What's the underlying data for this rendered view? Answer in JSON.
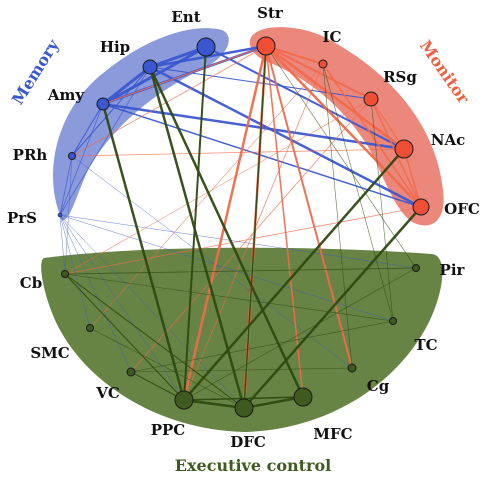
{
  "modules": {
    "memory": {
      "label": "Memory",
      "color": "#3a57d0",
      "fill": "#7d8fd6"
    },
    "monitor": {
      "label": "Monitor",
      "color": "#ef6040",
      "fill": "#ea7a6e"
    },
    "executive": {
      "label": "Executive control",
      "color": "#3e5a1e",
      "fill": "#5a7a34"
    }
  },
  "colors": {
    "memory_edge": "#3a57d0",
    "monitor_edge": "#f06a4a",
    "executive_edge": "#2e4a10"
  },
  "nodes": [
    {
      "id": "Ent",
      "label": "Ent",
      "module": "memory"
    },
    {
      "id": "Hip",
      "label": "Hip",
      "module": "memory"
    },
    {
      "id": "Amy",
      "label": "Amy",
      "module": "memory"
    },
    {
      "id": "PRh",
      "label": "PRh",
      "module": "memory"
    },
    {
      "id": "PrS",
      "label": "PrS",
      "module": "memory"
    },
    {
      "id": "Str",
      "label": "Str",
      "module": "monitor"
    },
    {
      "id": "IC",
      "label": "IC",
      "module": "monitor"
    },
    {
      "id": "RSg",
      "label": "RSg",
      "module": "monitor"
    },
    {
      "id": "NAc",
      "label": "NAc",
      "module": "monitor"
    },
    {
      "id": "OFC",
      "label": "OFC",
      "module": "monitor"
    },
    {
      "id": "Pir",
      "label": "Pir",
      "module": "executive"
    },
    {
      "id": "TC",
      "label": "TC",
      "module": "executive"
    },
    {
      "id": "Cg",
      "label": "Cg",
      "module": "executive"
    },
    {
      "id": "MFC",
      "label": "MFC",
      "module": "executive"
    },
    {
      "id": "DFC",
      "label": "DFC",
      "module": "executive"
    },
    {
      "id": "PPC",
      "label": "PPC",
      "module": "executive"
    },
    {
      "id": "VC",
      "label": "VC",
      "module": "executive"
    },
    {
      "id": "SMC",
      "label": "SMC",
      "module": "executive"
    },
    {
      "id": "Cb",
      "label": "Cb",
      "module": "executive"
    }
  ],
  "edges": [
    {
      "from": "Ent",
      "to": "Hip",
      "type": "memory",
      "weight": 3
    },
    {
      "from": "Ent",
      "to": "Amy",
      "type": "memory",
      "weight": 3
    },
    {
      "from": "Hip",
      "to": "Amy",
      "type": "memory",
      "weight": 3
    },
    {
      "from": "Amy",
      "to": "Str",
      "type": "memory",
      "weight": 2.5
    },
    {
      "from": "Hip",
      "to": "Str",
      "type": "memory",
      "weight": 2.5
    },
    {
      "from": "Amy",
      "to": "NAc",
      "type": "memory",
      "weight": 2.5
    },
    {
      "from": "Hip",
      "to": "OFC",
      "type": "memory",
      "weight": 2.5
    },
    {
      "from": "Ent",
      "to": "NAc",
      "type": "memory",
      "weight": 2
    },
    {
      "from": "Amy",
      "to": "OFC",
      "type": "memory",
      "weight": 1.5
    },
    {
      "from": "Hip",
      "to": "RSg",
      "type": "memory",
      "weight": 1
    },
    {
      "from": "Hip",
      "to": "PRh",
      "type": "memory",
      "weight": 1
    },
    {
      "from": "Amy",
      "to": "PRh",
      "type": "memory",
      "weight": 1
    },
    {
      "from": "PrS",
      "to": "Amy",
      "type": "memory",
      "weight": 0.8
    },
    {
      "from": "PrS",
      "to": "Hip",
      "type": "memory",
      "weight": 0.8
    },
    {
      "from": "PRh",
      "to": "PrS",
      "type": "memory",
      "weight": 0.8
    },
    {
      "from": "PrS",
      "to": "Cb",
      "type": "memory",
      "weight": 0.5
    },
    {
      "from": "PrS",
      "to": "SMC",
      "type": "memory",
      "weight": 0.5
    },
    {
      "from": "PrS",
      "to": "VC",
      "type": "memory",
      "weight": 0.5
    },
    {
      "from": "PrS",
      "to": "PPC",
      "type": "memory",
      "weight": 0.5
    },
    {
      "from": "PrS",
      "to": "DFC",
      "type": "memory",
      "weight": 0.5
    },
    {
      "from": "PrS",
      "to": "Pir",
      "type": "memory",
      "weight": 0.5
    },
    {
      "from": "PrS",
      "to": "TC",
      "type": "memory",
      "weight": 0.5
    },
    {
      "from": "PRh",
      "to": "Cb",
      "type": "memory",
      "weight": 0.5
    },
    {
      "from": "PRh",
      "to": "Cg",
      "type": "memory",
      "weight": 0.5
    },
    {
      "from": "Str",
      "to": "IC",
      "type": "monitor",
      "weight": 2
    },
    {
      "from": "Str",
      "to": "RSg",
      "type": "monitor",
      "weight": 2
    },
    {
      "from": "Str",
      "to": "NAc",
      "type": "monitor",
      "weight": 2.5
    },
    {
      "from": "Str",
      "to": "OFC",
      "type": "monitor",
      "weight": 2.5
    },
    {
      "from": "IC",
      "to": "OFC",
      "type": "monitor",
      "weight": 1.5
    },
    {
      "from": "RSg",
      "to": "OFC",
      "type": "monitor",
      "weight": 1.5
    },
    {
      "from": "NAc",
      "to": "OFC",
      "type": "monitor",
      "weight": 1.5
    },
    {
      "from": "RSg",
      "to": "NAc",
      "type": "monitor",
      "weight": 1
    },
    {
      "from": "Str",
      "to": "PPC",
      "type": "monitor",
      "weight": 2.5
    },
    {
      "from": "Str",
      "to": "DFC",
      "type": "monitor",
      "weight": 2.5
    },
    {
      "from": "Str",
      "to": "Cg",
      "type": "monitor",
      "weight": 2
    },
    {
      "from": "Str",
      "to": "MFC",
      "type": "monitor",
      "weight": 1.5
    },
    {
      "from": "Str",
      "to": "Amy",
      "type": "monitor",
      "weight": 1
    },
    {
      "from": "Str",
      "to": "PRh",
      "type": "monitor",
      "weight": 0.8
    },
    {
      "from": "OFC",
      "to": "Cb",
      "type": "monitor",
      "weight": 0.8
    },
    {
      "from": "NAc",
      "to": "PRh",
      "type": "monitor",
      "weight": 0.8
    },
    {
      "from": "RSg",
      "to": "VC",
      "type": "monitor",
      "weight": 0.8
    },
    {
      "from": "IC",
      "to": "PPC",
      "type": "monitor",
      "weight": 0.8
    },
    {
      "from": "IC",
      "to": "SMC",
      "type": "monitor",
      "weight": 0.6
    },
    {
      "from": "RSg",
      "to": "Cb",
      "type": "monitor",
      "weight": 0.6
    },
    {
      "from": "NAc",
      "to": "PPC",
      "type": "executive",
      "weight": 2.5
    },
    {
      "from": "OFC",
      "to": "DFC",
      "type": "executive",
      "weight": 2.5
    },
    {
      "from": "Hip",
      "to": "DFC",
      "type": "executive",
      "weight": 2.5
    },
    {
      "from": "Hip",
      "to": "MFC",
      "type": "executive",
      "weight": 2.5
    },
    {
      "from": "Amy",
      "to": "PPC",
      "type": "executive",
      "weight": 2.5
    },
    {
      "from": "Ent",
      "to": "PPC",
      "type": "executive",
      "weight": 2
    },
    {
      "from": "Str",
      "to": "DFC",
      "type": "executive",
      "weight": 1.5
    },
    {
      "from": "PPC",
      "to": "DFC",
      "type": "executive",
      "weight": 2.5
    },
    {
      "from": "DFC",
      "to": "MFC",
      "type": "executive",
      "weight": 2.5
    },
    {
      "from": "PPC",
      "to": "MFC",
      "type": "executive",
      "weight": 1.5
    },
    {
      "from": "VC",
      "to": "PPC",
      "type": "executive",
      "weight": 1
    },
    {
      "from": "Cb",
      "to": "PPC",
      "type": "executive",
      "weight": 1
    },
    {
      "from": "Cb",
      "to": "DFC",
      "type": "executive",
      "weight": 1
    },
    {
      "from": "Cb",
      "to": "Pir",
      "type": "executive",
      "weight": 0.8
    },
    {
      "from": "Cb",
      "to": "TC",
      "type": "executive",
      "weight": 0.6
    },
    {
      "from": "SMC",
      "to": "DFC",
      "type": "executive",
      "weight": 0.6
    },
    {
      "from": "Pir",
      "to": "PPC",
      "type": "executive",
      "weight": 0.6
    },
    {
      "from": "TC",
      "to": "VC",
      "type": "executive",
      "weight": 0.6
    },
    {
      "from": "Cg",
      "to": "VC",
      "type": "executive",
      "weight": 0.6
    },
    {
      "from": "IC",
      "to": "Cg",
      "type": "executive",
      "weight": 0.6
    },
    {
      "from": "RSg",
      "to": "TC",
      "type": "executive",
      "weight": 0.6
    },
    {
      "from": "IC",
      "to": "TC",
      "type": "executive",
      "weight": 0.6
    },
    {
      "from": "Str",
      "to": "Pir",
      "type": "executive",
      "weight": 0.6
    }
  ]
}
